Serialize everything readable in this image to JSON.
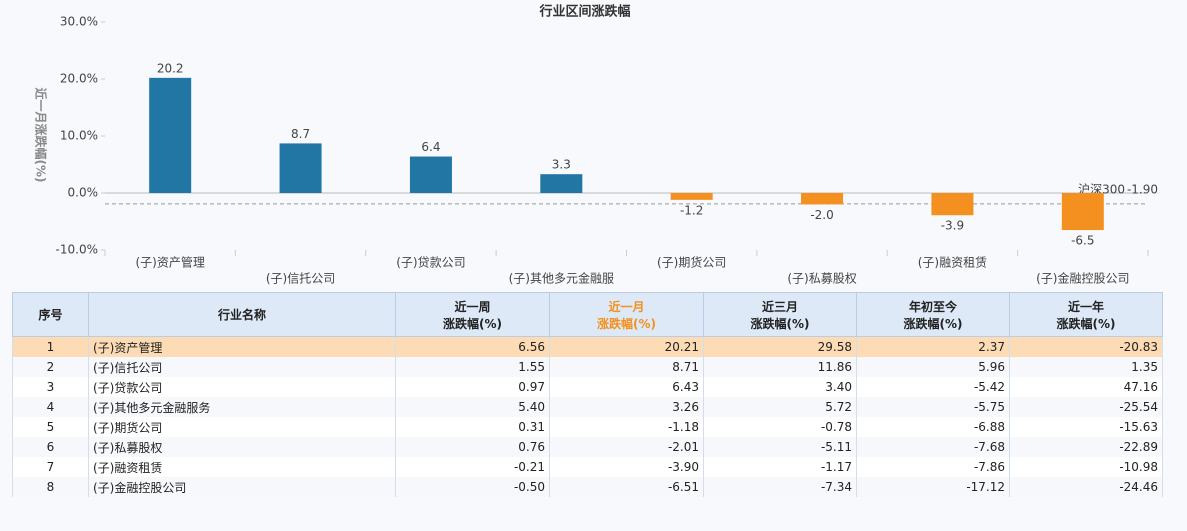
{
  "chart_data": {
    "type": "bar",
    "title": "行业区间涨跌幅",
    "y_label": "近一月涨跌幅(%)",
    "categories": [
      "(子)资产管理",
      "(子)信托公司",
      "(子)贷款公司",
      "(子)其他多元金融服",
      "(子)期货公司",
      "(子)私募股权",
      "(子)融资租赁",
      "(子)金融控股公司"
    ],
    "values": [
      20.2,
      8.7,
      6.4,
      3.3,
      -1.2,
      -2.0,
      -3.9,
      -6.5
    ],
    "value_labels": [
      "20.2",
      "8.7",
      "6.4",
      "3.3",
      "-1.2",
      "-2.0",
      "-3.9",
      "-6.5"
    ],
    "color_positive": "#2176a3",
    "color_negative": "#f39020",
    "ylim": [
      -10,
      30
    ],
    "yticks": [
      {
        "value": -10,
        "label": "-10.0%"
      },
      {
        "value": 0,
        "label": "0.0%"
      },
      {
        "value": 10,
        "label": "10.0%"
      },
      {
        "value": 20,
        "label": "20.0%"
      },
      {
        "value": 30,
        "label": "30.0%"
      }
    ],
    "reference_line": {
      "name": "沪深300",
      "value": -1.9,
      "value_label": "-1.90"
    }
  },
  "table": {
    "headers": [
      [
        "序号"
      ],
      [
        "行业名称"
      ],
      [
        "近一周",
        "涨跌幅(%)"
      ],
      [
        "近一月",
        "涨跌幅(%)"
      ],
      [
        "近三月",
        "涨跌幅(%)"
      ],
      [
        "年初至今",
        "涨跌幅(%)"
      ],
      [
        "近一年",
        "涨跌幅(%)"
      ]
    ],
    "rows": [
      [
        "1",
        "(子)资产管理",
        "6.56",
        "20.21",
        "29.58",
        "2.37",
        "-20.83"
      ],
      [
        "2",
        "(子)信托公司",
        "1.55",
        "8.71",
        "11.86",
        "5.96",
        "1.35"
      ],
      [
        "3",
        "(子)贷款公司",
        "0.97",
        "6.43",
        "3.40",
        "-5.42",
        "47.16"
      ],
      [
        "4",
        "(子)其他多元金融服务",
        "5.40",
        "3.26",
        "5.72",
        "-5.75",
        "-25.54"
      ],
      [
        "5",
        "(子)期货公司",
        "0.31",
        "-1.18",
        "-0.78",
        "-6.88",
        "-15.63"
      ],
      [
        "6",
        "(子)私募股权",
        "0.76",
        "-2.01",
        "-5.11",
        "-7.68",
        "-22.89"
      ],
      [
        "7",
        "(子)融资租赁",
        "-0.21",
        "-3.90",
        "-1.17",
        "-7.86",
        "-10.98"
      ],
      [
        "8",
        "(子)金融控股公司",
        "-0.50",
        "-6.51",
        "-7.34",
        "-17.12",
        "-24.46"
      ]
    ]
  }
}
